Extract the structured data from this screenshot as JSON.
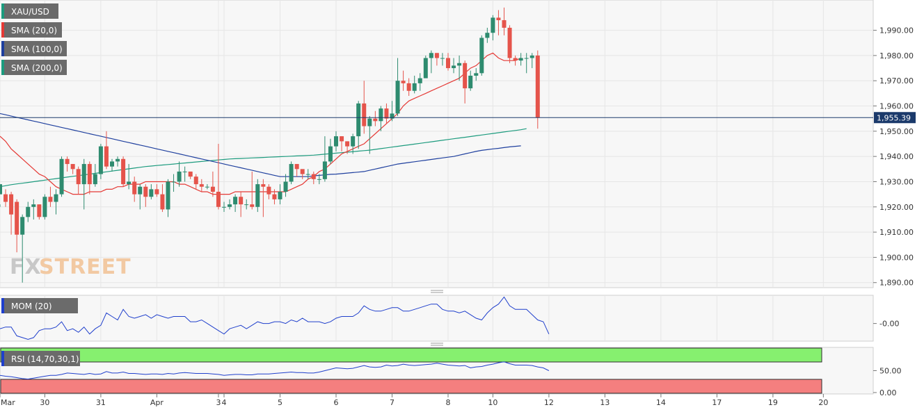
{
  "chart_data": {
    "type": "candlestick",
    "symbol": "XAU/USD",
    "indicators": {
      "sma20": {
        "label": "SMA (20,0)",
        "color": "#e53935",
        "values": [
          1948,
          1946,
          1943,
          1941,
          1939,
          1937,
          1935,
          1933,
          1932,
          1930,
          1928,
          1927,
          1926,
          1925,
          1925,
          1925,
          1926,
          1926,
          1926,
          1927,
          1927,
          1928,
          1928,
          1929,
          1929,
          1929,
          1930,
          1930,
          1930,
          1930,
          1930,
          1930,
          1929,
          1929,
          1928,
          1927,
          1926,
          1926,
          1925,
          1925,
          1925,
          1925,
          1926,
          1926,
          1926,
          1926,
          1926,
          1926,
          1926,
          1926,
          1926,
          1926,
          1927,
          1928,
          1929,
          1931,
          1932,
          1934,
          1935,
          1937,
          1939,
          1941,
          1942,
          1943,
          1944,
          1945,
          1947,
          1949,
          1951,
          1953,
          1955,
          1957,
          1960,
          1962,
          1963,
          1964,
          1965,
          1966,
          1967,
          1968,
          1969,
          1970,
          1971,
          1973,
          1975,
          1976,
          1978,
          1980,
          1981,
          1979,
          1978,
          1978,
          1978,
          1979
        ]
      },
      "sma100": {
        "label": "SMA (100,0)",
        "color": "#1e3f9e",
        "values": [
          1957,
          1956.5,
          1956,
          1955.5,
          1955,
          1954.5,
          1954,
          1953.5,
          1953,
          1952.5,
          1952,
          1951.5,
          1951,
          1950.5,
          1950,
          1949.5,
          1949,
          1948.5,
          1948,
          1947.5,
          1947,
          1946.5,
          1946,
          1945.5,
          1945,
          1944.5,
          1944,
          1943.5,
          1943,
          1942.5,
          1942,
          1941.5,
          1941,
          1940.5,
          1940,
          1939.5,
          1939,
          1938.5,
          1938,
          1937.5,
          1937,
          1936.5,
          1936,
          1935.5,
          1935,
          1934.5,
          1934,
          1933.5,
          1933,
          1932.5,
          1932,
          1932,
          1932,
          1932,
          1932,
          1932,
          1932.3,
          1932.5,
          1932.7,
          1932.9,
          1933,
          1933.2,
          1933.4,
          1933.6,
          1933.8,
          1934,
          1934.5,
          1935,
          1935.5,
          1936,
          1936.5,
          1937,
          1937.3,
          1937.6,
          1937.9,
          1938.2,
          1938.5,
          1938.8,
          1939.1,
          1939.4,
          1939.7,
          1940,
          1940.5,
          1941,
          1941.5,
          1942,
          1942.4,
          1942.7,
          1943,
          1943.2,
          1943.5,
          1943.8,
          1944,
          1944.2
        ]
      },
      "sma200": {
        "label": "SMA (200,0)",
        "color": "#1c9b7e",
        "values": [
          1928,
          1928.4,
          1928.8,
          1929.1,
          1929.4,
          1929.7,
          1930,
          1930.3,
          1930.6,
          1930.9,
          1931.2,
          1931.5,
          1931.8,
          1932.1,
          1932.4,
          1932.7,
          1933,
          1933.3,
          1933.6,
          1933.9,
          1934.2,
          1934.5,
          1934.8,
          1935.1,
          1935.4,
          1935.7,
          1936,
          1936.2,
          1936.4,
          1936.6,
          1936.8,
          1937,
          1937.2,
          1937.4,
          1937.6,
          1937.8,
          1938,
          1938.2,
          1938.4,
          1938.6,
          1938.8,
          1939,
          1939.1,
          1939.2,
          1939.3,
          1939.4,
          1939.5,
          1939.6,
          1939.7,
          1939.8,
          1939.9,
          1940,
          1940.1,
          1940.2,
          1940.3,
          1940.4,
          1940.5,
          1940.7,
          1940.9,
          1941.1,
          1941.3,
          1941.5,
          1941.7,
          1941.9,
          1942.1,
          1942.3,
          1942.5,
          1942.8,
          1943.1,
          1943.4,
          1943.7,
          1944,
          1944.3,
          1944.6,
          1944.9,
          1945.2,
          1945.5,
          1945.8,
          1946.1,
          1946.4,
          1946.7,
          1947,
          1947.3,
          1947.6,
          1947.9,
          1948.2,
          1948.5,
          1948.8,
          1949.1,
          1949.4,
          1949.7,
          1950,
          1950.3,
          1950.6,
          1951
        ]
      }
    },
    "candles": [
      [
        1925,
        1929,
        1921,
        1920
      ],
      [
        1925,
        1922,
        1927,
        1920
      ],
      [
        1925,
        1917,
        1926,
        1909
      ],
      [
        1922,
        1909,
        1923,
        1902
      ],
      [
        1909,
        1916,
        1917,
        1890
      ],
      [
        1916,
        1920,
        1922,
        1914
      ],
      [
        1920,
        1921,
        1923,
        1915
      ],
      [
        1921,
        1916,
        1921,
        1915
      ],
      [
        1916,
        1924,
        1925,
        1915
      ],
      [
        1924,
        1922,
        1928,
        1920
      ],
      [
        1922,
        1925,
        1927,
        1917
      ],
      [
        1925,
        1939,
        1940,
        1924
      ],
      [
        1939,
        1937,
        1940,
        1934
      ],
      [
        1937,
        1935,
        1937,
        1933
      ],
      [
        1935,
        1929,
        1936,
        1925
      ],
      [
        1929,
        1937,
        1939,
        1919
      ],
      [
        1937,
        1929,
        1938,
        1925
      ],
      [
        1929,
        1933,
        1937,
        1928
      ],
      [
        1933,
        1944,
        1945,
        1931
      ],
      [
        1944,
        1936,
        1950,
        1935
      ],
      [
        1936,
        1938,
        1939,
        1934
      ],
      [
        1938,
        1939,
        1940,
        1936
      ],
      [
        1939,
        1929,
        1940,
        1928
      ],
      [
        1929,
        1930,
        1937,
        1927
      ],
      [
        1930,
        1925,
        1932,
        1922
      ],
      [
        1925,
        1928,
        1929,
        1919
      ],
      [
        1928,
        1924,
        1929,
        1920
      ],
      [
        1924,
        1927,
        1929,
        1923
      ],
      [
        1927,
        1925,
        1929,
        1924
      ],
      [
        1925,
        1919,
        1929,
        1918
      ],
      [
        1919,
        1930,
        1931,
        1916
      ],
      [
        1930,
        1930,
        1933,
        1926
      ],
      [
        1930,
        1934,
        1938,
        1928
      ],
      [
        1934,
        1934,
        1936,
        1930
      ],
      [
        1934,
        1932,
        1934,
        1931
      ],
      [
        1932,
        1929,
        1933,
        1927
      ],
      [
        1929,
        1928,
        1931,
        1926
      ],
      [
        1928,
        1928,
        1929,
        1927
      ],
      [
        1928,
        1926,
        1934,
        1924
      ],
      [
        1926,
        1920,
        1945,
        1919
      ],
      [
        1920,
        1920,
        1922,
        1918
      ],
      [
        1920,
        1921,
        1923,
        1919
      ],
      [
        1921,
        1924,
        1925,
        1918
      ],
      [
        1924,
        1921,
        1926,
        1916
      ],
      [
        1921,
        1921,
        1923,
        1919
      ],
      [
        1921,
        1920,
        1934,
        1919
      ],
      [
        1920,
        1929,
        1931,
        1918
      ],
      [
        1929,
        1928,
        1931,
        1916
      ],
      [
        1928,
        1925,
        1929,
        1923
      ],
      [
        1925,
        1923,
        1927,
        1921
      ],
      [
        1923,
        1926,
        1929,
        1921
      ],
      [
        1926,
        1930,
        1933,
        1924
      ],
      [
        1930,
        1937,
        1938,
        1929
      ],
      [
        1937,
        1935,
        1937,
        1932
      ],
      [
        1935,
        1933,
        1934,
        1931
      ],
      [
        1933,
        1933,
        1935,
        1931
      ],
      [
        1933,
        1931,
        1934,
        1929
      ],
      [
        1931,
        1931,
        1933,
        1929
      ],
      [
        1931,
        1938,
        1948,
        1930
      ],
      [
        1938,
        1944,
        1947,
        1937
      ],
      [
        1944,
        1948,
        1950,
        1942
      ],
      [
        1948,
        1946,
        1948,
        1942
      ],
      [
        1946,
        1944,
        1946,
        1941
      ],
      [
        1944,
        1948,
        1949,
        1941
      ],
      [
        1948,
        1961,
        1962,
        1943
      ],
      [
        1961,
        1952,
        1970,
        1949
      ],
      [
        1952,
        1955,
        1956,
        1941
      ],
      [
        1955,
        1954,
        1958,
        1952
      ],
      [
        1954,
        1959,
        1960,
        1950
      ],
      [
        1959,
        1955,
        1961,
        1953
      ],
      [
        1955,
        1957,
        1962,
        1954
      ],
      [
        1957,
        1970,
        1979,
        1956
      ],
      [
        1970,
        1969,
        1974,
        1966
      ],
      [
        1969,
        1966,
        1971,
        1964
      ],
      [
        1966,
        1969,
        1972,
        1965
      ],
      [
        1969,
        1971,
        1973,
        1966
      ],
      [
        1971,
        1979,
        1980,
        1972
      ],
      [
        1979,
        1981,
        1982,
        1973
      ],
      [
        1981,
        1979,
        1981,
        1976
      ],
      [
        1979,
        1979,
        1981,
        1976
      ],
      [
        1979,
        1975,
        1981,
        1974
      ],
      [
        1975,
        1976,
        1979,
        1973
      ],
      [
        1976,
        1977,
        1980,
        1970
      ],
      [
        1977,
        1967,
        1978,
        1961
      ],
      [
        1967,
        1972,
        1974,
        1966
      ],
      [
        1972,
        1973,
        1975,
        1970
      ],
      [
        1973,
        1987,
        1988,
        1972
      ],
      [
        1987,
        1989,
        1991,
        1985
      ],
      [
        1989,
        1995,
        1996,
        1986
      ],
      [
        1995,
        1994,
        1998,
        1988
      ],
      [
        1994,
        1991,
        1999,
        1988
      ],
      [
        1991,
        1979,
        1992,
        1977
      ],
      [
        1979,
        1978,
        1980,
        1976
      ],
      [
        1978,
        1979,
        1981,
        1976
      ],
      [
        1979,
        1979,
        1981,
        1973
      ],
      [
        1979,
        1980,
        1981,
        1975
      ],
      [
        1980,
        1955.39,
        1982,
        1951
      ]
    ],
    "last_price": "1,955.39",
    "price_axis": {
      "min": 1888,
      "max": 2002,
      "ticks": [
        "1,890.00",
        "1,900.00",
        "1,910.00",
        "1,920.00",
        "1,930.00",
        "1,940.00",
        "1,950.00",
        "1,960.00",
        "1,970.00",
        "1,980.00",
        "1,990.00"
      ]
    },
    "x_labels": [
      {
        "label": "Mar",
        "index": 0
      },
      {
        "label": "30",
        "index": 8
      },
      {
        "label": "31",
        "index": 18
      },
      {
        "label": "Apr",
        "index": 28
      },
      {
        "label": "3",
        "index": 39
      },
      {
        "label": "4",
        "index": 40
      },
      {
        "label": "5",
        "index": 50
      },
      {
        "label": "6",
        "index": 60
      },
      {
        "label": "7",
        "index": 70
      },
      {
        "label": "8",
        "index": 80
      },
      {
        "label": "10",
        "index": 88
      },
      {
        "label": "12",
        "index": 98
      },
      {
        "label": "13",
        "index": 108
      },
      {
        "label": "14",
        "index": 118
      },
      {
        "label": "17",
        "index": 128
      },
      {
        "label": "19",
        "index": 138
      },
      {
        "label": "20",
        "index": 147
      }
    ],
    "mom": {
      "label": "MOM (20)",
      "color": "#1f3fcc",
      "tick": "-0.00",
      "values": [
        -3,
        -2,
        -2,
        -7,
        -8,
        -9,
        -8,
        -4,
        -3,
        -3,
        -2,
        1,
        -4,
        -3,
        -5,
        -2,
        -6,
        -3,
        -1,
        6,
        4,
        2,
        8,
        4,
        3,
        4,
        5,
        3,
        5,
        4,
        3,
        4,
        4,
        4,
        1,
        1,
        2,
        0,
        -2,
        -4,
        -6,
        -3,
        -2,
        -1,
        -3,
        -1,
        1,
        0,
        0,
        1,
        1,
        0,
        2,
        1,
        3,
        1,
        1,
        1,
        0,
        1,
        3,
        4,
        4,
        4,
        6,
        10,
        8,
        7,
        7,
        8,
        9,
        9,
        7,
        7,
        8,
        9,
        10,
        11,
        11,
        8,
        7,
        7,
        6,
        7,
        5,
        3,
        2,
        6,
        9,
        11,
        15,
        10,
        8,
        8,
        8,
        5,
        2,
        1,
        -6
      ]
    },
    "rsi": {
      "label": "RSI (14,70,30,1)",
      "color": "#1f3fcc",
      "overbought": 70,
      "oversold": 30,
      "ticks": [
        "0.00",
        "50.00"
      ],
      "values": [
        40,
        38,
        37,
        35,
        33,
        32,
        34,
        36,
        38,
        40,
        40,
        42,
        45,
        44,
        43,
        42,
        44,
        42,
        43,
        48,
        45,
        45,
        47,
        44,
        44,
        43,
        42,
        43,
        43,
        42,
        44,
        43,
        45,
        46,
        45,
        44,
        44,
        44,
        43,
        42,
        40,
        41,
        42,
        42,
        41,
        41,
        43,
        43,
        43,
        44,
        45,
        46,
        47,
        46,
        46,
        45,
        45,
        47,
        50,
        53,
        56,
        55,
        54,
        55,
        58,
        61,
        58,
        57,
        58,
        62,
        60,
        61,
        64,
        62,
        61,
        62,
        63,
        64,
        66,
        64,
        62,
        61,
        60,
        61,
        56,
        58,
        59,
        62,
        64,
        67,
        69,
        65,
        62,
        62,
        62,
        61,
        58,
        56,
        50
      ]
    }
  }
}
